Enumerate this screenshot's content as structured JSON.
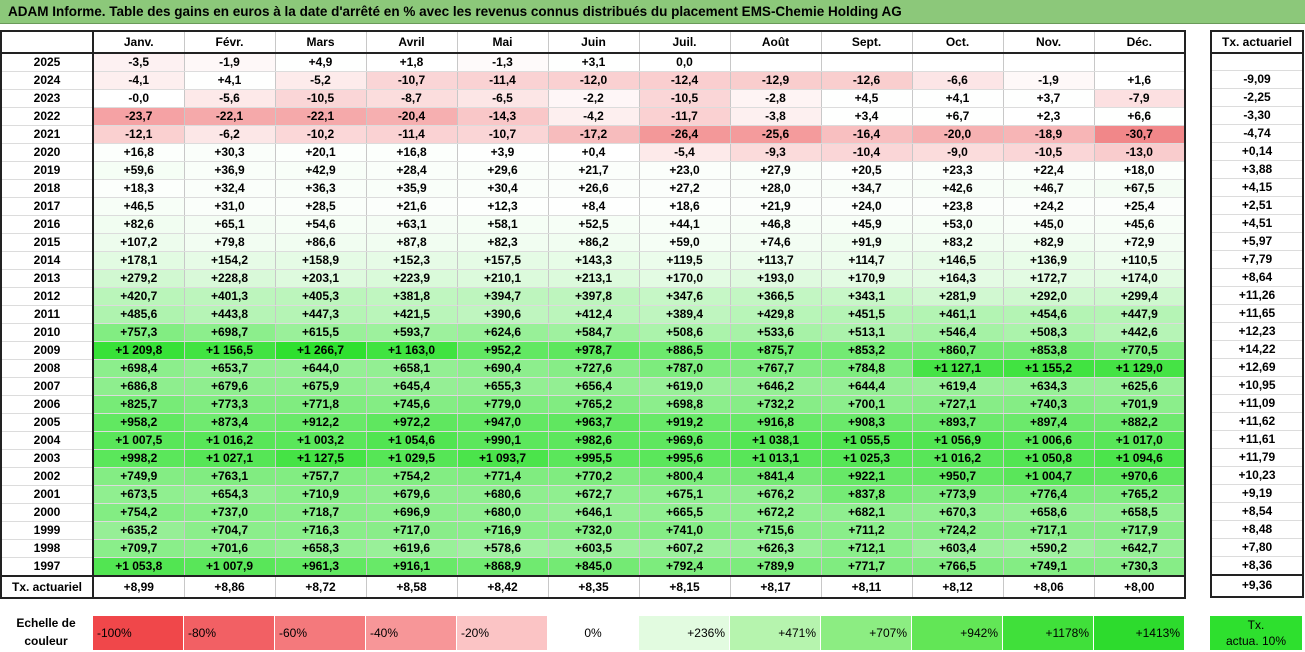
{
  "title": "ADAM Informe. Table des gains en euros à la date d'arrêté en % avec les revenus connus distribués du placement EMS-Chemie Holding AG",
  "months": [
    "Janv.",
    "Févr.",
    "Mars",
    "Avril",
    "Mai",
    "Juin",
    "Juil.",
    "Août",
    "Sept.",
    "Oct.",
    "Nov.",
    "Déc."
  ],
  "side_header": "Tx. actuariel",
  "rows": [
    {
      "year": "2025",
      "values": [
        "-3,5",
        "-1,9",
        "+4,9",
        "+1,8",
        "-1,3",
        "+3,1",
        "0,0",
        "",
        "",
        "",
        "",
        ""
      ],
      "tx": ""
    },
    {
      "year": "2024",
      "values": [
        "-4,1",
        "+4,1",
        "-5,2",
        "-10,7",
        "-11,4",
        "-12,0",
        "-12,4",
        "-12,9",
        "-12,6",
        "-6,6",
        "-1,9",
        "+1,6"
      ],
      "tx": "-9,09"
    },
    {
      "year": "2023",
      "values": [
        "-0,0",
        "-5,6",
        "-10,5",
        "-8,7",
        "-6,5",
        "-2,2",
        "-10,5",
        "-2,8",
        "+4,5",
        "+4,1",
        "+3,7",
        "-7,9"
      ],
      "tx": "-2,25"
    },
    {
      "year": "2022",
      "values": [
        "-23,7",
        "-22,1",
        "-22,1",
        "-20,4",
        "-14,3",
        "-4,2",
        "-11,7",
        "-3,8",
        "+3,4",
        "+6,7",
        "+2,3",
        "+6,6"
      ],
      "tx": "-3,30"
    },
    {
      "year": "2021",
      "values": [
        "-12,1",
        "-6,2",
        "-10,2",
        "-11,4",
        "-10,7",
        "-17,2",
        "-26,4",
        "-25,6",
        "-16,4",
        "-20,0",
        "-18,9",
        "-30,7"
      ],
      "tx": "-4,74"
    },
    {
      "year": "2020",
      "values": [
        "+16,8",
        "+30,3",
        "+20,1",
        "+16,8",
        "+3,9",
        "+0,4",
        "-5,4",
        "-9,3",
        "-10,4",
        "-9,0",
        "-10,5",
        "-13,0"
      ],
      "tx": "+0,14"
    },
    {
      "year": "2019",
      "values": [
        "+59,6",
        "+36,9",
        "+42,9",
        "+28,4",
        "+29,6",
        "+21,7",
        "+23,0",
        "+27,9",
        "+20,5",
        "+23,3",
        "+22,4",
        "+18,0"
      ],
      "tx": "+3,88"
    },
    {
      "year": "2018",
      "values": [
        "+18,3",
        "+32,4",
        "+36,3",
        "+35,9",
        "+30,4",
        "+26,6",
        "+27,2",
        "+28,0",
        "+34,7",
        "+42,6",
        "+46,7",
        "+67,5"
      ],
      "tx": "+4,15"
    },
    {
      "year": "2017",
      "values": [
        "+46,5",
        "+31,0",
        "+28,5",
        "+21,6",
        "+12,3",
        "+8,4",
        "+18,6",
        "+21,9",
        "+24,0",
        "+23,8",
        "+24,2",
        "+25,4"
      ],
      "tx": "+2,51"
    },
    {
      "year": "2016",
      "values": [
        "+82,6",
        "+65,1",
        "+54,6",
        "+63,1",
        "+58,1",
        "+52,5",
        "+44,1",
        "+46,8",
        "+45,9",
        "+53,0",
        "+45,0",
        "+45,6"
      ],
      "tx": "+4,51"
    },
    {
      "year": "2015",
      "values": [
        "+107,2",
        "+79,8",
        "+86,6",
        "+87,8",
        "+82,3",
        "+86,2",
        "+59,0",
        "+74,6",
        "+91,9",
        "+83,2",
        "+82,9",
        "+72,9"
      ],
      "tx": "+5,97"
    },
    {
      "year": "2014",
      "values": [
        "+178,1",
        "+154,2",
        "+158,9",
        "+152,3",
        "+157,5",
        "+143,3",
        "+119,5",
        "+113,7",
        "+114,7",
        "+146,5",
        "+136,9",
        "+110,5"
      ],
      "tx": "+7,79"
    },
    {
      "year": "2013",
      "values": [
        "+279,2",
        "+228,8",
        "+203,1",
        "+223,9",
        "+210,1",
        "+213,1",
        "+170,0",
        "+193,0",
        "+170,9",
        "+164,3",
        "+172,7",
        "+174,0"
      ],
      "tx": "+8,64"
    },
    {
      "year": "2012",
      "values": [
        "+420,7",
        "+401,3",
        "+405,3",
        "+381,8",
        "+394,7",
        "+397,8",
        "+347,6",
        "+366,5",
        "+343,1",
        "+281,9",
        "+292,0",
        "+299,4"
      ],
      "tx": "+11,26"
    },
    {
      "year": "2011",
      "values": [
        "+485,6",
        "+443,8",
        "+447,3",
        "+421,5",
        "+390,6",
        "+412,4",
        "+389,4",
        "+429,8",
        "+451,5",
        "+461,1",
        "+454,6",
        "+447,9"
      ],
      "tx": "+11,65"
    },
    {
      "year": "2010",
      "values": [
        "+757,3",
        "+698,7",
        "+615,5",
        "+593,7",
        "+624,6",
        "+584,7",
        "+508,6",
        "+533,6",
        "+513,1",
        "+546,4",
        "+508,3",
        "+442,6"
      ],
      "tx": "+12,23"
    },
    {
      "year": "2009",
      "values": [
        "+1 209,8",
        "+1 156,5",
        "+1 266,7",
        "+1 163,0",
        "+952,2",
        "+978,7",
        "+886,5",
        "+875,7",
        "+853,2",
        "+860,7",
        "+853,8",
        "+770,5"
      ],
      "tx": "+14,22"
    },
    {
      "year": "2008",
      "values": [
        "+698,4",
        "+653,7",
        "+644,0",
        "+658,1",
        "+690,4",
        "+727,6",
        "+787,0",
        "+767,7",
        "+784,8",
        "+1 127,1",
        "+1 155,2",
        "+1 129,0"
      ],
      "tx": "+12,69"
    },
    {
      "year": "2007",
      "values": [
        "+686,8",
        "+679,6",
        "+675,9",
        "+645,4",
        "+655,3",
        "+656,4",
        "+619,0",
        "+646,2",
        "+644,4",
        "+619,4",
        "+634,3",
        "+625,6"
      ],
      "tx": "+10,95"
    },
    {
      "year": "2006",
      "values": [
        "+825,7",
        "+773,3",
        "+771,8",
        "+745,6",
        "+779,0",
        "+765,2",
        "+698,8",
        "+732,2",
        "+700,1",
        "+727,1",
        "+740,3",
        "+701,9"
      ],
      "tx": "+11,09"
    },
    {
      "year": "2005",
      "values": [
        "+958,2",
        "+873,4",
        "+912,2",
        "+972,2",
        "+947,0",
        "+963,7",
        "+919,2",
        "+916,8",
        "+908,3",
        "+893,7",
        "+897,4",
        "+882,2"
      ],
      "tx": "+11,62"
    },
    {
      "year": "2004",
      "values": [
        "+1 007,5",
        "+1 016,2",
        "+1 003,2",
        "+1 054,6",
        "+990,1",
        "+982,6",
        "+969,6",
        "+1 038,1",
        "+1 055,5",
        "+1 056,9",
        "+1 006,6",
        "+1 017,0"
      ],
      "tx": "+11,61"
    },
    {
      "year": "2003",
      "values": [
        "+998,2",
        "+1 027,1",
        "+1 127,5",
        "+1 029,5",
        "+1 093,7",
        "+995,5",
        "+995,6",
        "+1 013,1",
        "+1 025,3",
        "+1 016,2",
        "+1 050,8",
        "+1 094,6"
      ],
      "tx": "+11,79"
    },
    {
      "year": "2002",
      "values": [
        "+749,9",
        "+763,1",
        "+757,7",
        "+754,2",
        "+771,4",
        "+770,2",
        "+800,4",
        "+841,4",
        "+922,1",
        "+950,7",
        "+1 004,7",
        "+970,6"
      ],
      "tx": "+10,23"
    },
    {
      "year": "2001",
      "values": [
        "+673,5",
        "+654,3",
        "+710,9",
        "+679,6",
        "+680,6",
        "+672,7",
        "+675,1",
        "+676,2",
        "+837,8",
        "+773,9",
        "+776,4",
        "+765,2"
      ],
      "tx": "+9,19"
    },
    {
      "year": "2000",
      "values": [
        "+754,2",
        "+737,0",
        "+718,7",
        "+696,9",
        "+680,0",
        "+646,1",
        "+665,5",
        "+672,2",
        "+682,1",
        "+670,3",
        "+658,6",
        "+658,5"
      ],
      "tx": "+8,54"
    },
    {
      "year": "1999",
      "values": [
        "+635,2",
        "+704,7",
        "+716,3",
        "+717,0",
        "+716,9",
        "+732,0",
        "+741,0",
        "+715,6",
        "+711,2",
        "+724,2",
        "+717,1",
        "+717,9"
      ],
      "tx": "+8,48"
    },
    {
      "year": "1998",
      "values": [
        "+709,7",
        "+701,6",
        "+658,3",
        "+619,6",
        "+578,6",
        "+603,5",
        "+607,2",
        "+626,3",
        "+712,1",
        "+603,4",
        "+590,2",
        "+642,7"
      ],
      "tx": "+7,80"
    },
    {
      "year": "1997",
      "values": [
        "+1 053,8",
        "+1 007,9",
        "+961,3",
        "+916,1",
        "+868,9",
        "+845,0",
        "+792,4",
        "+789,9",
        "+771,7",
        "+766,5",
        "+749,1",
        "+730,3"
      ],
      "tx": "+8,36"
    }
  ],
  "tx_row": {
    "label": "Tx. actuariel",
    "values": [
      "+8,99",
      "+8,86",
      "+8,72",
      "+8,58",
      "+8,42",
      "+8,35",
      "+8,15",
      "+8,17",
      "+8,11",
      "+8,12",
      "+8,06",
      "+8,00"
    ],
    "tx": "+9,36"
  },
  "legend": {
    "label_line1": "Echelle de",
    "label_line2": "couleur",
    "steps": [
      {
        "label": "-100%",
        "color": "#f0474a"
      },
      {
        "label": "-80%",
        "color": "#f26064"
      },
      {
        "label": "-60%",
        "color": "#f4797c"
      },
      {
        "label": "-40%",
        "color": "#f79698"
      },
      {
        "label": "-20%",
        "color": "#fbc4c5"
      },
      {
        "label": "0%",
        "color": "#ffffff"
      },
      {
        "label": "+236%",
        "color": "#e2fbe0"
      },
      {
        "label": "+471%",
        "color": "#b6f4ae"
      },
      {
        "label": "+707%",
        "color": "#8ced82"
      },
      {
        "label": "+942%",
        "color": "#62e656"
      },
      {
        "label": "+1178%",
        "color": "#40e03a"
      },
      {
        "label": "+1413%",
        "color": "#2ddb2d"
      }
    ],
    "side_line1": "Tx.",
    "side_line2": "actua. 10%"
  }
}
